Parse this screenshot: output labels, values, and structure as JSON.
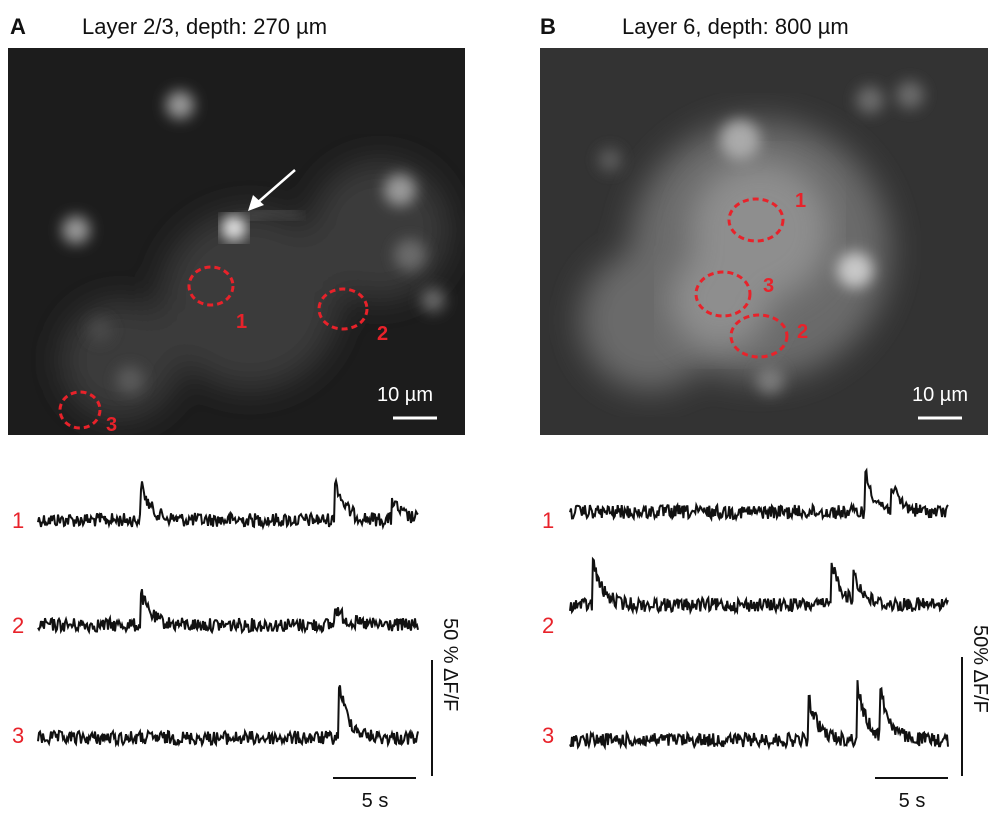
{
  "panels": [
    {
      "letter": "A",
      "title": "Layer 2/3, depth: 270 µm",
      "scale_bar": "10 µm",
      "rois": [
        "1",
        "2",
        "3"
      ],
      "trace_labels": [
        "1",
        "2",
        "3"
      ],
      "amplitude_scale": "50 % ΔF/F",
      "time_scale": "5 s"
    },
    {
      "letter": "B",
      "title": "Layer 6, depth: 800 µm",
      "scale_bar": "10 µm",
      "rois": [
        "1",
        "3",
        "2"
      ],
      "trace_labels": [
        "1",
        "2",
        "3"
      ],
      "amplitude_scale": "50% ΔF/F",
      "time_scale": "5 s"
    }
  ]
}
